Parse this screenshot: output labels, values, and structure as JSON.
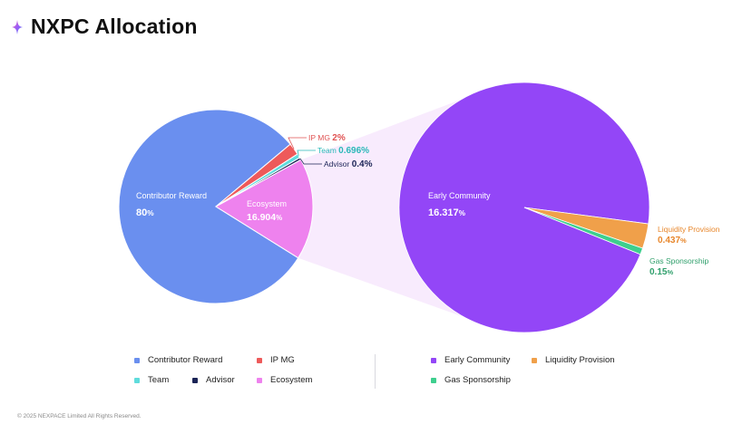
{
  "header": {
    "title": "NXPC Allocation",
    "logo_icon": "sparkle-icon"
  },
  "footer": {
    "copyright": "© 2025 NEXPACE Limited All Rights Reserved."
  },
  "chart_data": [
    {
      "type": "pie",
      "slices": [
        {
          "label": "Contributor Reward",
          "value": 80,
          "value_text": "80",
          "unit": "%",
          "color": "#6a8fef"
        },
        {
          "label": "IP MG",
          "value": 2,
          "value_text": "2",
          "unit": "%",
          "color": "#ee5a5a"
        },
        {
          "label": "Team",
          "value": 0.696,
          "value_text": "0.696",
          "unit": "%",
          "color": "#5fdcdc"
        },
        {
          "label": "Advisor",
          "value": 0.4,
          "value_text": "0.4",
          "unit": "%",
          "color": "#1b2456"
        },
        {
          "label": "Ecosystem",
          "value": 16.904,
          "value_text": "16.904",
          "unit": "%",
          "color": "#ee82ee"
        }
      ]
    },
    {
      "type": "pie",
      "breakdown_of": "Ecosystem",
      "slices": [
        {
          "label": "Early Community",
          "value": 16.317,
          "value_text": "16.317",
          "unit": "%",
          "color": "#9346f7"
        },
        {
          "label": "Liquidity Provision",
          "value": 0.437,
          "value_text": "0.437",
          "unit": "%",
          "color": "#f0a04a"
        },
        {
          "label": "Gas Sponsorship",
          "value": 0.15,
          "value_text": "0.15",
          "unit": "%",
          "color": "#3ecf8e"
        }
      ]
    }
  ],
  "legend": {
    "left": [
      {
        "label": "Contributor Reward",
        "color": "#6a8fef"
      },
      {
        "label": "IP MG",
        "color": "#ee5a5a"
      },
      {
        "label": "Team",
        "color": "#5fdcdc"
      },
      {
        "label": "Advisor",
        "color": "#1b2456"
      },
      {
        "label": "Ecosystem",
        "color": "#ee82ee"
      }
    ],
    "right": [
      {
        "label": "Early Community",
        "color": "#9346f7"
      },
      {
        "label": "Liquidity Provision",
        "color": "#f0a04a"
      },
      {
        "label": "Gas Sponsorship",
        "color": "#3ecf8e"
      }
    ]
  }
}
